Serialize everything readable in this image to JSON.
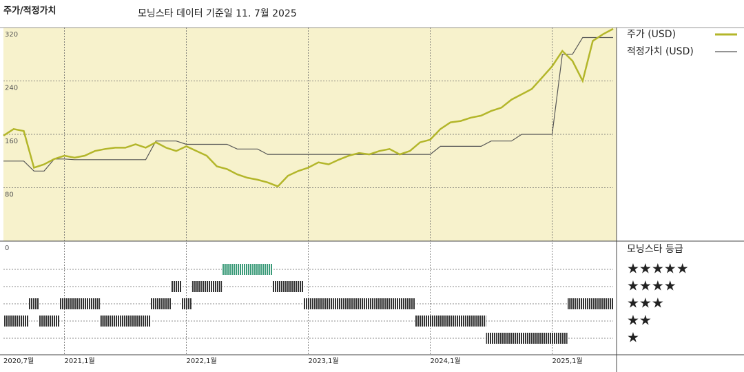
{
  "chart_data": {
    "type": "line",
    "title": "주가/적정가치",
    "subtitle": "모닝스타 데이터 기준일 11. 7월 2025",
    "x": [
      "2020-07",
      "2020-08",
      "2020-09",
      "2020-10",
      "2020-11",
      "2020-12",
      "2021-01",
      "2021-02",
      "2021-03",
      "2021-04",
      "2021-05",
      "2021-06",
      "2021-07",
      "2021-08",
      "2021-09",
      "2021-10",
      "2021-11",
      "2021-12",
      "2022-01",
      "2022-02",
      "2022-03",
      "2022-04",
      "2022-05",
      "2022-06",
      "2022-07",
      "2022-08",
      "2022-09",
      "2022-10",
      "2022-11",
      "2022-12",
      "2023-01",
      "2023-02",
      "2023-03",
      "2023-04",
      "2023-05",
      "2023-06",
      "2023-07",
      "2023-08",
      "2023-09",
      "2023-10",
      "2023-11",
      "2023-12",
      "2024-01",
      "2024-02",
      "2024-03",
      "2024-04",
      "2024-05",
      "2024-06",
      "2024-07",
      "2024-08",
      "2024-09",
      "2024-10",
      "2024-11",
      "2024-12",
      "2025-01",
      "2025-02",
      "2025-03",
      "2025-04",
      "2025-05",
      "2025-06",
      "2025-07"
    ],
    "series": [
      {
        "name": "주가 (USD)",
        "color": "#b3b62a",
        "values": [
          158,
          168,
          165,
          110,
          115,
          123,
          128,
          125,
          128,
          135,
          138,
          140,
          140,
          145,
          140,
          148,
          140,
          135,
          142,
          135,
          128,
          112,
          108,
          100,
          95,
          92,
          88,
          82,
          98,
          105,
          110,
          118,
          115,
          122,
          128,
          132,
          130,
          135,
          138,
          130,
          135,
          148,
          152,
          168,
          178,
          180,
          185,
          188,
          195,
          200,
          212,
          220,
          228,
          245,
          262,
          285,
          270,
          240,
          300,
          310,
          318
        ]
      },
      {
        "name": "적정가치 (USD)",
        "color": "#555555",
        "values": [
          120,
          120,
          120,
          105,
          105,
          123,
          123,
          122,
          122,
          122,
          122,
          122,
          122,
          122,
          122,
          150,
          150,
          150,
          145,
          145,
          145,
          145,
          145,
          138,
          138,
          138,
          130,
          130,
          130,
          130,
          130,
          130,
          130,
          130,
          130,
          130,
          130,
          130,
          130,
          130,
          130,
          130,
          130,
          142,
          142,
          142,
          142,
          142,
          150,
          150,
          150,
          160,
          160,
          160,
          160,
          280,
          280,
          305,
          305,
          305,
          305
        ]
      }
    ],
    "xlim": [
      "2020-07",
      "2025-07"
    ],
    "xticks": [
      {
        "value": "2020-07",
        "label": "2020,7월"
      },
      {
        "value": "2021-01",
        "label": "2021,1월"
      },
      {
        "value": "2022-01",
        "label": "2022,1월"
      },
      {
        "value": "2023-01",
        "label": "2023,1월"
      },
      {
        "value": "2024-01",
        "label": "2024,1월"
      },
      {
        "value": "2025-01",
        "label": "2025,1월"
      }
    ],
    "ylim": [
      0,
      320
    ],
    "yticks": [
      0,
      80,
      160,
      240,
      320
    ],
    "grid": true,
    "ratings": {
      "title": "모닝스타 등급",
      "labels": [
        "★",
        "★★",
        "★★★",
        "★★★★",
        "★★★★★"
      ],
      "values": [
        2,
        2,
        2,
        3,
        2,
        2,
        3,
        3,
        3,
        3,
        2,
        2,
        2,
        2,
        2,
        3,
        3,
        4,
        3,
        4,
        4,
        4,
        5,
        5,
        5,
        5,
        5,
        4,
        4,
        4,
        3,
        3,
        3,
        3,
        3,
        3,
        3,
        3,
        3,
        3,
        3,
        2,
        2,
        2,
        2,
        2,
        2,
        2,
        1,
        1,
        1,
        1,
        1,
        1,
        1,
        1,
        3,
        3,
        3,
        3,
        3
      ],
      "color": "#333333",
      "highlight_color": "#3a9a78"
    }
  }
}
